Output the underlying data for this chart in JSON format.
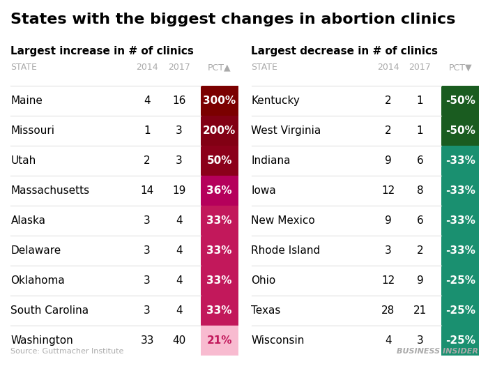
{
  "title": "States with the biggest changes in abortion clinics",
  "left_subtitle": "Largest increase in # of clinics",
  "right_subtitle": "Largest decrease in # of clinics",
  "source": "Source: Guttmacher Institute",
  "watermark": "BUSINESS INSIDER",
  "left_headers": [
    "STATE",
    "2014",
    "2017",
    "PCT▲"
  ],
  "right_headers": [
    "STATE",
    "2014",
    "2017",
    "PCT▼"
  ],
  "left_data": [
    [
      "Maine",
      "4",
      "16",
      "300%"
    ],
    [
      "Missouri",
      "1",
      "3",
      "200%"
    ],
    [
      "Utah",
      "2",
      "3",
      "50%"
    ],
    [
      "Massachusetts",
      "14",
      "19",
      "36%"
    ],
    [
      "Alaska",
      "3",
      "4",
      "33%"
    ],
    [
      "Delaware",
      "3",
      "4",
      "33%"
    ],
    [
      "Oklahoma",
      "3",
      "4",
      "33%"
    ],
    [
      "South Carolina",
      "3",
      "4",
      "33%"
    ],
    [
      "Washington",
      "33",
      "40",
      "21%"
    ]
  ],
  "right_data": [
    [
      "Kentucky",
      "2",
      "1",
      "-50%"
    ],
    [
      "West Virginia",
      "2",
      "1",
      "-50%"
    ],
    [
      "Indiana",
      "9",
      "6",
      "-33%"
    ],
    [
      "Iowa",
      "12",
      "8",
      "-33%"
    ],
    [
      "New Mexico",
      "9",
      "6",
      "-33%"
    ],
    [
      "Rhode Island",
      "3",
      "2",
      "-33%"
    ],
    [
      "Ohio",
      "12",
      "9",
      "-25%"
    ],
    [
      "Texas",
      "28",
      "21",
      "-25%"
    ],
    [
      "Wisconsin",
      "4",
      "3",
      "-25%"
    ]
  ],
  "left_pct_colors": [
    "#7B0000",
    "#820014",
    "#8B001A",
    "#B5005B",
    "#C2185B",
    "#C2185B",
    "#C2185B",
    "#C2185B",
    "#F8BBD0"
  ],
  "right_pct_colors": [
    "#1A5C20",
    "#1A5C20",
    "#1A9070",
    "#1A9070",
    "#1A9070",
    "#1A9070",
    "#1A9070",
    "#1A9070",
    "#1A9070"
  ],
  "bg_color": "#FFFFFF",
  "header_color": "#AAAAAA",
  "row_sep_color": "#E0E0E0",
  "title_fontsize": 16,
  "subtitle_fontsize": 11,
  "header_fontsize": 9,
  "data_fontsize": 11,
  "pct_fontsize": 11
}
